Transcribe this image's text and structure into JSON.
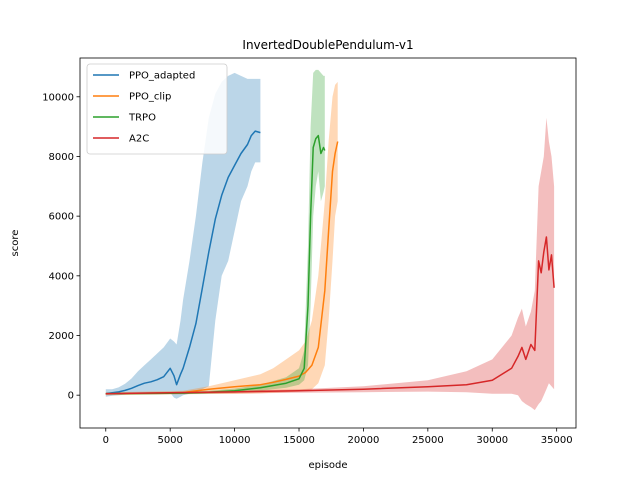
{
  "chart_data": {
    "type": "line",
    "title": "InvertedDoublePendulum-v1",
    "xlabel": "episode",
    "ylabel": "score",
    "xlim": [
      -2000,
      36500
    ],
    "ylim": [
      -1100,
      11300
    ],
    "xticks": [
      0,
      5000,
      10000,
      15000,
      20000,
      25000,
      30000,
      35000
    ],
    "yticks": [
      0,
      2000,
      4000,
      6000,
      8000,
      10000
    ],
    "grid": false,
    "legend_position": "top-left",
    "series": [
      {
        "name": "PPO_adapted",
        "color": "#1f77b4",
        "x": [
          0,
          500,
          1000,
          1500,
          2000,
          2500,
          3000,
          3500,
          4000,
          4500,
          5000,
          5300,
          5500,
          5800,
          6000,
          6500,
          7000,
          7500,
          8000,
          8500,
          9000,
          9500,
          10000,
          10500,
          11000,
          11300,
          11600,
          12000
        ],
        "y": [
          50,
          80,
          110,
          160,
          230,
          320,
          400,
          450,
          520,
          620,
          900,
          650,
          350,
          700,
          900,
          1600,
          2400,
          3600,
          4800,
          5900,
          6700,
          7300,
          7700,
          8100,
          8400,
          8700,
          8850,
          8800
        ],
        "upper": [
          200,
          200,
          260,
          380,
          560,
          800,
          1000,
          1200,
          1400,
          1600,
          1900,
          1800,
          1700,
          2500,
          3200,
          4500,
          6000,
          7800,
          9300,
          10100,
          10500,
          10700,
          10800,
          10700,
          10600,
          10600,
          10600,
          10600
        ],
        "lower": [
          -50,
          -20,
          0,
          20,
          50,
          60,
          60,
          50,
          60,
          70,
          80,
          -80,
          -120,
          -50,
          0,
          50,
          100,
          200,
          300,
          2500,
          4000,
          4500,
          5500,
          6500,
          7000,
          7500,
          7800,
          7800
        ]
      },
      {
        "name": "PPO_clip",
        "color": "#ff7f0e",
        "x": [
          0,
          2000,
          4000,
          6000,
          8000,
          10000,
          12000,
          13000,
          14000,
          15000,
          15500,
          16000,
          16500,
          17000,
          17300,
          17600,
          17800,
          18000
        ],
        "y": [
          50,
          60,
          70,
          90,
          200,
          280,
          350,
          430,
          530,
          640,
          760,
          1000,
          1600,
          3500,
          5500,
          7500,
          8100,
          8500
        ],
        "upper": [
          100,
          110,
          130,
          150,
          300,
          500,
          700,
          900,
          1200,
          1500,
          1800,
          2500,
          4000,
          6500,
          8500,
          10000,
          10400,
          10500
        ],
        "lower": [
          0,
          10,
          20,
          30,
          40,
          40,
          60,
          80,
          100,
          120,
          150,
          200,
          400,
          1000,
          2500,
          4500,
          6000,
          6500
        ]
      },
      {
        "name": "TRPO",
        "color": "#2ca02c",
        "x": [
          0,
          2000,
          4000,
          6000,
          8000,
          10000,
          12000,
          14000,
          15000,
          15400,
          15700,
          15900,
          16100,
          16300,
          16500,
          16700,
          16900,
          17000
        ],
        "y": [
          50,
          55,
          60,
          70,
          100,
          150,
          250,
          400,
          550,
          900,
          3000,
          6000,
          8300,
          8600,
          8700,
          8100,
          8300,
          8200
        ],
        "upper": [
          80,
          90,
          100,
          110,
          150,
          220,
          350,
          600,
          900,
          1500,
          5000,
          9000,
          10800,
          10900,
          10900,
          10800,
          10700,
          10700
        ],
        "lower": [
          20,
          25,
          30,
          35,
          50,
          80,
          150,
          250,
          350,
          500,
          1000,
          3000,
          6000,
          7000,
          7500,
          6500,
          6800,
          7000
        ]
      },
      {
        "name": "A2C",
        "color": "#d62728",
        "x": [
          0,
          5000,
          10000,
          15000,
          20000,
          25000,
          28000,
          30000,
          31500,
          32000,
          32300,
          32600,
          33000,
          33300,
          33600,
          33800,
          34000,
          34200,
          34400,
          34600,
          34800
        ],
        "y": [
          50,
          80,
          110,
          150,
          200,
          280,
          350,
          500,
          900,
          1300,
          1600,
          1200,
          1700,
          1500,
          4500,
          4100,
          4800,
          5300,
          4200,
          4700,
          3600
        ],
        "upper": [
          80,
          110,
          150,
          200,
          300,
          500,
          800,
          1200,
          2000,
          2600,
          2900,
          2300,
          2800,
          3500,
          7000,
          7500,
          8000,
          9300,
          8500,
          8000,
          7000
        ],
        "lower": [
          20,
          40,
          60,
          80,
          100,
          120,
          100,
          50,
          50,
          0,
          -200,
          -300,
          -400,
          -500,
          -300,
          -200,
          0,
          200,
          400,
          300,
          200
        ]
      }
    ]
  }
}
